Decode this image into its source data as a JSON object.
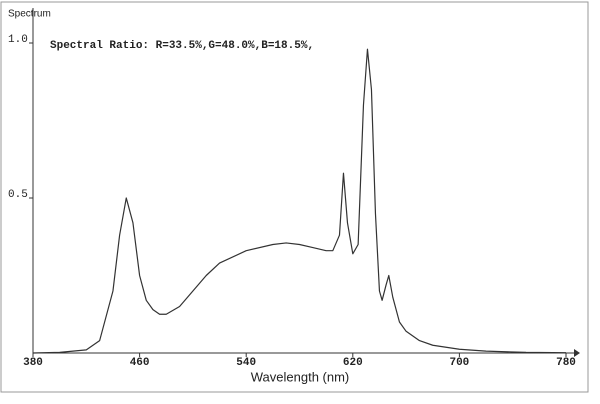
{
  "chart_data": {
    "type": "line",
    "title": "Spectrum",
    "annotation": "Spectral Ratio:  R=33.5%,G=48.0%,B=18.5%,",
    "x_label": "Wavelength (nm)",
    "x": [
      380,
      400,
      420,
      430,
      440,
      445,
      450,
      455,
      460,
      465,
      470,
      475,
      480,
      490,
      500,
      510,
      520,
      540,
      560,
      570,
      580,
      590,
      600,
      605,
      610,
      613,
      616,
      620,
      624,
      628,
      631,
      634,
      637,
      640,
      642,
      645,
      647,
      650,
      655,
      660,
      670,
      680,
      700,
      720,
      750,
      780
    ],
    "values": [
      0,
      0.002,
      0.01,
      0.04,
      0.2,
      0.38,
      0.5,
      0.42,
      0.25,
      0.17,
      0.14,
      0.125,
      0.125,
      0.15,
      0.2,
      0.25,
      0.29,
      0.33,
      0.35,
      0.355,
      0.35,
      0.34,
      0.33,
      0.33,
      0.38,
      0.58,
      0.42,
      0.32,
      0.35,
      0.8,
      0.98,
      0.85,
      0.45,
      0.2,
      0.17,
      0.22,
      0.25,
      0.18,
      0.1,
      0.07,
      0.04,
      0.025,
      0.012,
      0.006,
      0.002,
      0.001
    ],
    "color": "#333333",
    "xlim": [
      380,
      780
    ],
    "xticks": [
      380,
      460,
      540,
      620,
      700,
      780
    ],
    "ylim": [
      0,
      1.1
    ],
    "yticks": [
      {
        "value": 0.5,
        "label": "0.5"
      },
      {
        "value": 1,
        "label": "1.0"
      }
    ]
  }
}
